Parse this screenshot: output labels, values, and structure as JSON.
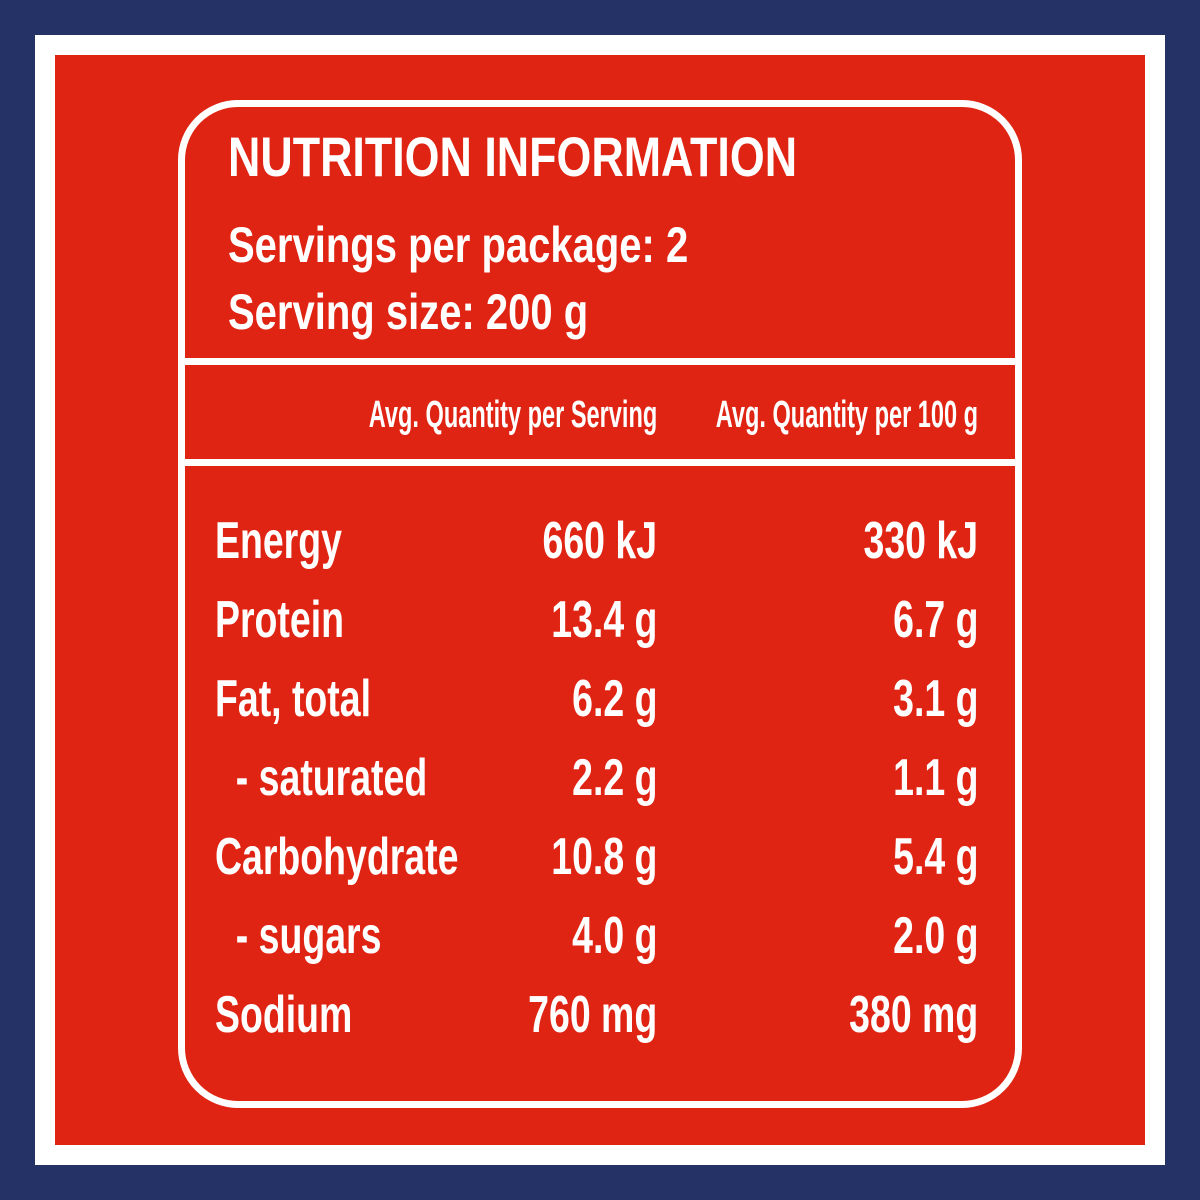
{
  "title": "NUTRITION INFORMATION",
  "servings": [
    "Servings per package: 2",
    "Serving size: 200 g"
  ],
  "table": {
    "headers": [
      "Avg. Quantity per Serving",
      "Avg. Quantity per 100 g"
    ],
    "rows": [
      [
        "Energy",
        "660 kJ",
        "330 kJ"
      ],
      [
        "Protein",
        "13.4 g",
        "6.7 g"
      ],
      [
        "Fat, total",
        "6.2 g",
        "3.1 g"
      ],
      [
        "  - saturated",
        "2.2 g",
        "1.1 g"
      ],
      [
        "Carbohydrate",
        "10.8 g",
        "5.4 g"
      ],
      [
        "  - sugars",
        "4.0 g",
        "2.0 g"
      ],
      [
        "Sodium",
        "760 mg",
        "380 mg"
      ]
    ]
  }
}
